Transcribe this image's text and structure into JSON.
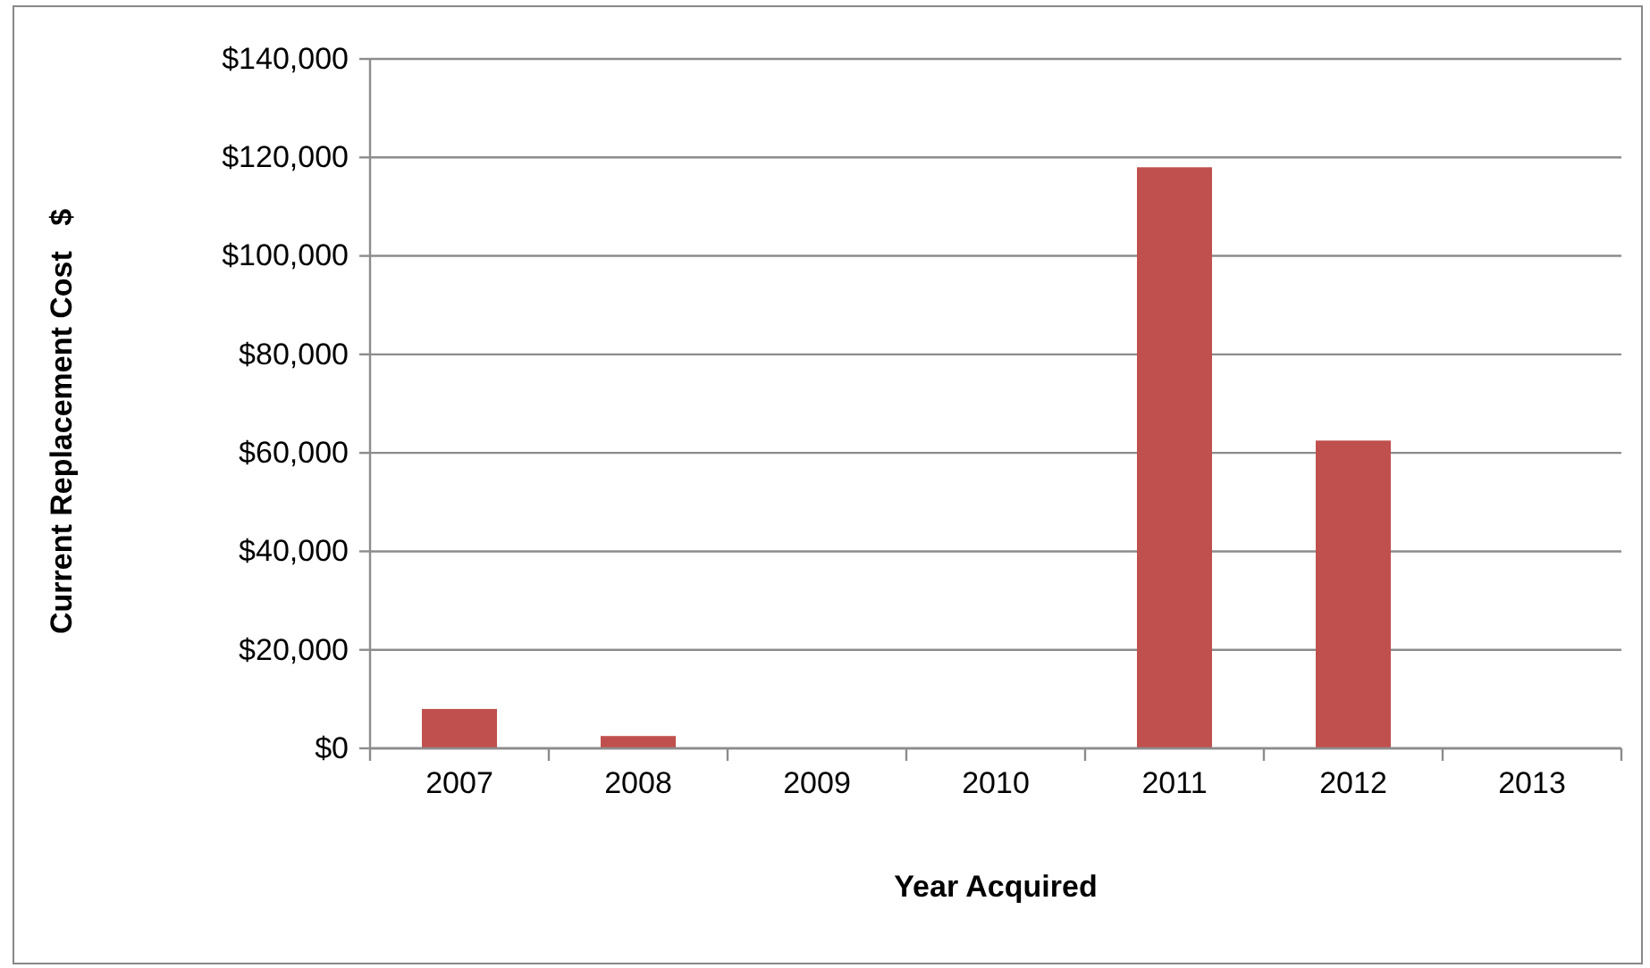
{
  "chart_data": {
    "type": "bar",
    "xlabel": "Year Acquired",
    "ylabel": "Current Replacement Cost   $",
    "categories": [
      "2007",
      "2008",
      "2009",
      "2010",
      "2011",
      "2012",
      "2013"
    ],
    "values": [
      8000,
      2500,
      0,
      0,
      118000,
      62500,
      0
    ],
    "color": "#c0504d",
    "ylim": [
      0,
      140000
    ],
    "yticks": [
      {
        "value": 0,
        "label": "$0"
      },
      {
        "value": 20000,
        "label": "$20,000"
      },
      {
        "value": 40000,
        "label": "$40,000"
      },
      {
        "value": 60000,
        "label": "$60,000"
      },
      {
        "value": 80000,
        "label": "$80,000"
      },
      {
        "value": 100000,
        "label": "$100,000"
      },
      {
        "value": 120000,
        "label": "$120,000"
      },
      {
        "value": 140000,
        "label": "$140,000"
      }
    ],
    "grid": "y"
  }
}
